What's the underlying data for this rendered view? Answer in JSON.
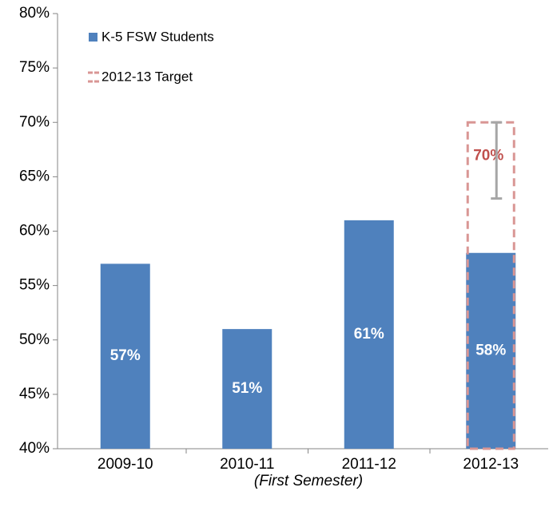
{
  "chart_data": {
    "type": "bar",
    "x_label": "(First Semester)",
    "categories": [
      "2009-10",
      "2010-11",
      "2011-12",
      "2012-13"
    ],
    "series": [
      {
        "name": "K-5 FSW Students",
        "color": "#4f81bd",
        "values": [
          57,
          51,
          61,
          58
        ],
        "value_labels": [
          "57%",
          "51%",
          "61%",
          "58%"
        ]
      },
      {
        "name": "2012-13 Target",
        "color": "#d99694",
        "label_color": "#c0504d",
        "values": [
          null,
          null,
          null,
          70
        ],
        "value_labels": [
          null,
          null,
          null,
          "70%"
        ],
        "range": {
          "category": 3,
          "low": 63,
          "high": 70,
          "color": "#a6a6a6"
        }
      }
    ],
    "ylim": [
      40,
      80
    ],
    "yticks": [
      {
        "value": 40,
        "label": "40%"
      },
      {
        "value": 45,
        "label": "45%"
      },
      {
        "value": 50,
        "label": "50%"
      },
      {
        "value": 55,
        "label": "55%"
      },
      {
        "value": 60,
        "label": "60%"
      },
      {
        "value": 65,
        "label": "65%"
      },
      {
        "value": 70,
        "label": "70%"
      },
      {
        "value": 75,
        "label": "75%"
      },
      {
        "value": 80,
        "label": "80%"
      }
    ],
    "grid": false,
    "legend": "top-left"
  }
}
